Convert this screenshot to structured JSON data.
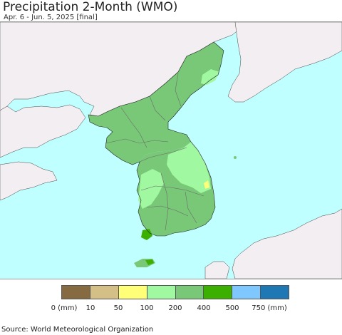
{
  "header": {
    "title": "Precipitation 2-Month (WMO)",
    "subtitle": "Apr. 6 - Jun. 5, 2025 [final]"
  },
  "map": {
    "ocean_color": "#bfffff",
    "land_color": "#f2eef2",
    "region_color_200_400": "#78c878",
    "region_color_100_200": "#a0f8a0",
    "region_color_400_500": "#3cb000"
  },
  "legend": {
    "colors": [
      "#856a42",
      "#d4bf87",
      "#ffff78",
      "#a0f8a0",
      "#78c878",
      "#3cb000",
      "#7ec8ff",
      "#1f78b4"
    ],
    "labels": [
      "0 (mm)",
      "10",
      "50",
      "100",
      "200",
      "400",
      "500",
      "750 (mm)"
    ]
  },
  "footer": {
    "source": "Source: World Meteorological Organization"
  }
}
